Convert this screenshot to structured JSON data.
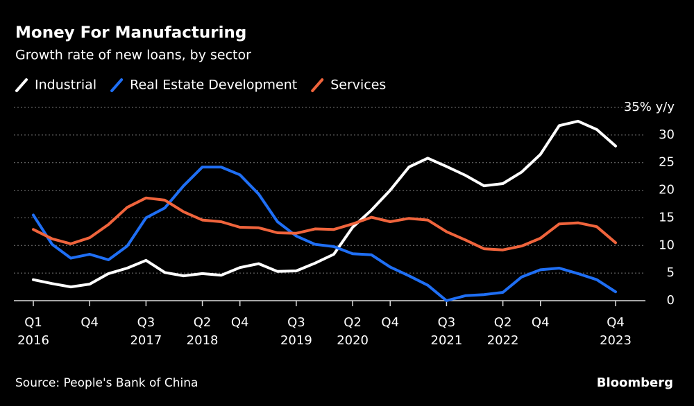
{
  "chart_data": {
    "type": "line",
    "title": "Money For Manufacturing",
    "subtitle": "Growth rate of new loans, by sector",
    "source": "Source: People's Bank of China",
    "brand": "Bloomberg",
    "categories": [
      "Q1",
      null,
      null,
      "Q4",
      null,
      null,
      "Q3",
      null,
      null,
      "Q2",
      null,
      "Q4",
      null,
      null,
      "Q3",
      null,
      null,
      "Q2",
      null,
      "Q4",
      null,
      null,
      "Q3",
      null,
      null,
      "Q2",
      null,
      "Q4",
      null,
      null,
      null,
      "Q4"
    ],
    "category_years": [
      "2016",
      null,
      null,
      null,
      null,
      null,
      "2017",
      null,
      null,
      "2018",
      null,
      null,
      null,
      null,
      "2019",
      null,
      null,
      "2020",
      null,
      null,
      null,
      null,
      "2021",
      null,
      null,
      "2022",
      null,
      null,
      null,
      null,
      null,
      "2023"
    ],
    "series": [
      {
        "name": "Industrial",
        "color": "#ffffff",
        "values": [
          3.8,
          3.1,
          2.5,
          3.0,
          4.9,
          5.9,
          7.3,
          5.1,
          4.5,
          4.9,
          4.6,
          6.0,
          6.7,
          5.3,
          5.4,
          6.8,
          8.4,
          13.3,
          16.4,
          20.0,
          24.2,
          25.8,
          24.3,
          22.7,
          20.8,
          21.2,
          23.3,
          26.5,
          31.7,
          32.5,
          31.0,
          28.0
        ]
      },
      {
        "name": "Real Estate Development",
        "color": "#1f6ff5",
        "values": [
          15.5,
          10.2,
          7.7,
          8.4,
          7.4,
          9.9,
          15.0,
          16.8,
          20.8,
          24.2,
          24.2,
          22.8,
          19.3,
          14.3,
          11.7,
          10.2,
          9.8,
          8.5,
          8.3,
          6.1,
          4.5,
          2.8,
          0.0,
          0.9,
          1.1,
          1.5,
          4.3,
          5.6,
          5.9,
          4.9,
          3.8,
          1.6
        ]
      },
      {
        "name": "Services",
        "color": "#f0643c",
        "values": [
          12.9,
          11.2,
          10.3,
          11.4,
          13.8,
          16.9,
          18.6,
          18.2,
          16.1,
          14.6,
          14.3,
          13.3,
          13.2,
          12.3,
          12.2,
          13.0,
          12.9,
          13.9,
          15.1,
          14.3,
          14.9,
          14.6,
          12.5,
          11.0,
          9.4,
          9.2,
          9.9,
          11.3,
          13.9,
          14.1,
          13.4,
          10.5
        ]
      }
    ],
    "ylim": [
      0,
      35
    ],
    "yticks": [
      0,
      5,
      10,
      15,
      20,
      25,
      30,
      {
        "value": 35,
        "label": "35% y/y"
      }
    ],
    "grid": true
  }
}
